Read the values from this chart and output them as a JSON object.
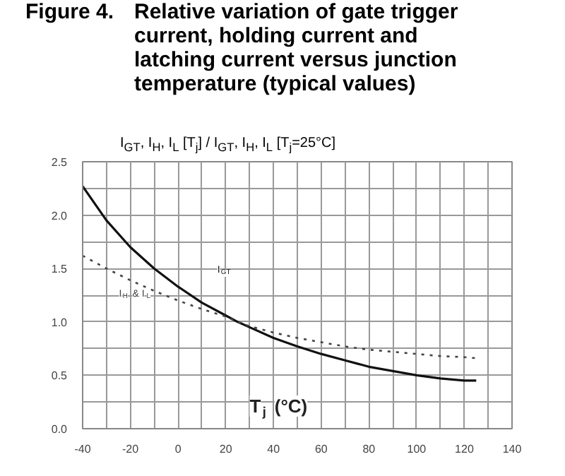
{
  "chart_data": {
    "type": "line",
    "title": "Figure 4.",
    "subtitle": "Relative variation of gate trigger current, holding current and latching current versus junction temperature (typical values)",
    "ylabel": "I$_{GT}$, I$_{H}$, I$_{L}$ [T$_{j}$] / I$_{GT}$, I$_{H}$, I$_{L}$ [T$_{j}$=25°C]",
    "xlabel": "T$_{j}$ (°C)",
    "xlim": [
      -40,
      140
    ],
    "ylim": [
      0,
      2.5
    ],
    "xticks": [
      -40,
      {
        "value": -30,
        "label": null
      },
      -20,
      {
        "value": -10,
        "label": null
      },
      0,
      {
        "value": 10,
        "label": null
      },
      20,
      {
        "value": 30,
        "label": null
      },
      40,
      {
        "value": 50,
        "label": null
      },
      60,
      {
        "value": 70,
        "label": null
      },
      80,
      {
        "value": 90,
        "label": null
      },
      100,
      {
        "value": 110,
        "label": null
      },
      120,
      {
        "value": 130,
        "label": null
      },
      140
    ],
    "yticks": [
      {
        "value": 0,
        "label": "0.0"
      },
      {
        "value": 0.25,
        "label": null
      },
      {
        "value": 0.5,
        "label": "0.5"
      },
      {
        "value": 0.75,
        "label": null
      },
      {
        "value": 1,
        "label": "1.0"
      },
      {
        "value": 1.25,
        "label": null
      },
      {
        "value": 1.5,
        "label": "1.5"
      },
      {
        "value": 1.75,
        "label": null
      },
      {
        "value": 2,
        "label": "2.0"
      },
      {
        "value": 2.25,
        "label": null
      },
      {
        "value": 2.5,
        "label": "2.5"
      }
    ],
    "grid": true,
    "x": [
      -40,
      -30,
      -20,
      -10,
      0,
      10,
      20,
      25,
      30,
      40,
      50,
      60,
      70,
      80,
      90,
      100,
      110,
      120,
      125
    ],
    "series": [
      {
        "name": "I$_{GT}$",
        "color": "#111111",
        "line_style": "solid",
        "values": [
          2.27,
          1.95,
          1.7,
          1.5,
          1.33,
          1.18,
          1.06,
          1.0,
          0.95,
          0.85,
          0.77,
          0.7,
          0.64,
          0.58,
          0.54,
          0.5,
          0.47,
          0.45,
          0.45
        ]
      },
      {
        "name": "I$_{H}$ & I$_{L}$",
        "color": "#444444",
        "line_style": "dotted",
        "values": [
          1.62,
          1.5,
          1.39,
          1.29,
          1.2,
          1.12,
          1.05,
          1.0,
          0.96,
          0.9,
          0.85,
          0.81,
          0.77,
          0.74,
          0.72,
          0.7,
          0.68,
          0.67,
          0.66
        ]
      }
    ]
  }
}
